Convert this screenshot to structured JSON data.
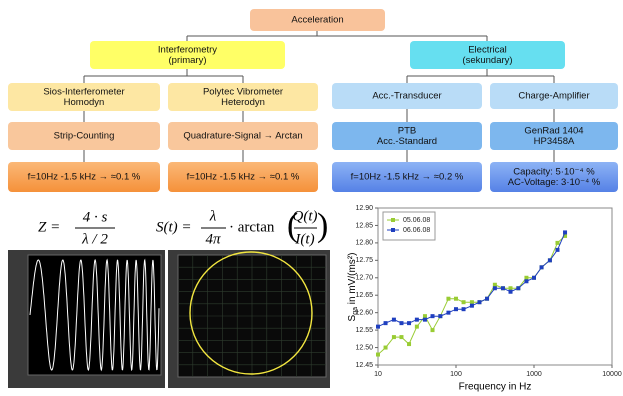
{
  "diagram": {
    "boxes": [
      {
        "lines": [
          "Acceleration"
        ]
      },
      {
        "lines": [
          "Interferometry",
          "(primary)"
        ]
      },
      {
        "lines": [
          "Electrical",
          "(sekundary)"
        ]
      },
      {
        "lines": [
          "Sios-Interferometer",
          "Homodyn"
        ]
      },
      {
        "lines": [
          "Polytec Vibrometer",
          "Heterodyn"
        ]
      },
      {
        "lines": [
          "Acc.-Transducer"
        ]
      },
      {
        "lines": [
          "Charge-Amplifier"
        ]
      },
      {
        "lines": [
          "Strip-Counting"
        ]
      },
      {
        "lines": [
          "Quadrature-Signal → Arctan"
        ]
      },
      {
        "lines": [
          "PTB",
          "Acc.-Standard"
        ]
      },
      {
        "lines": [
          "GenRad 1404",
          "HP3458A"
        ]
      },
      {
        "lines": [
          "f=10Hz -1.5 kHz → ≈0.1 %"
        ]
      },
      {
        "lines": [
          "f=10Hz -1.5 kHz → ≈0.1 %"
        ]
      },
      {
        "lines": [
          "f=10Hz -1.5 kHz → ≈0.2 %"
        ]
      },
      {
        "lines": [
          "Capacity: 5·10⁻⁴ %",
          "AC-Voltage: 3·10⁻⁴ %"
        ]
      }
    ]
  },
  "formulas": [
    {
      "lhs": "Z =",
      "numerator": "4 · s",
      "denominator": "λ / 2"
    },
    {
      "lhs": "S(t) =",
      "numerator": "λ",
      "denominator": "4π",
      "middle": "· arctan",
      "inner_numerator": "Q(t)",
      "inner_denominator": "I(t)"
    }
  ],
  "chart_data": {
    "type": "scatter-line",
    "ylabel": [
      "S",
      "qa",
      " in mV/(ms²)"
    ],
    "xlabel": "Frequency in Hz",
    "x": [
      10,
      12.5,
      16,
      20,
      25,
      31.5,
      40,
      50,
      63,
      80,
      100,
      125,
      160,
      200,
      250,
      315,
      400,
      500,
      630,
      800,
      1000,
      1250,
      1600,
      2000,
      2500
    ],
    "series": [
      {
        "name": "05.06.08",
        "color": "#99cc33",
        "values": [
          12.48,
          12.5,
          12.53,
          12.53,
          12.51,
          12.56,
          12.59,
          12.55,
          12.59,
          12.64,
          12.64,
          12.63,
          12.63,
          12.63,
          12.64,
          12.68,
          12.67,
          12.67,
          12.67,
          12.7,
          12.7,
          12.73,
          12.75,
          12.8,
          12.82
        ]
      },
      {
        "name": "06.06.08",
        "color": "#1f3fbf",
        "values": [
          12.56,
          12.57,
          12.58,
          12.57,
          12.57,
          12.58,
          12.58,
          12.59,
          12.59,
          12.6,
          12.61,
          12.61,
          12.62,
          12.63,
          12.64,
          12.67,
          12.67,
          12.66,
          12.67,
          12.69,
          12.7,
          12.73,
          12.75,
          12.78,
          12.83
        ]
      }
    ],
    "xlim": [
      10,
      10000
    ],
    "xticks": [
      10,
      100,
      1000,
      10000
    ],
    "xlog": true,
    "ylim": [
      12.45,
      12.9
    ],
    "yticks": [
      12.45,
      {
        "value": 12.5,
        "label": "12.50"
      },
      12.55,
      {
        "value": 12.6,
        "label": "12.60"
      },
      12.65,
      {
        "value": 12.7,
        "label": "12.70"
      },
      12.75,
      {
        "value": 12.8,
        "label": "12.80"
      },
      12.85,
      {
        "value": 12.9,
        "label": "12.90"
      }
    ],
    "legend": "upper left",
    "grid": false
  }
}
